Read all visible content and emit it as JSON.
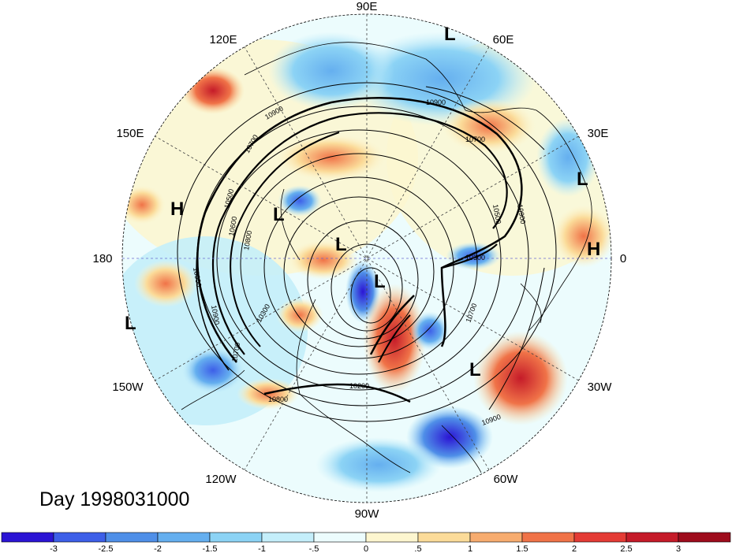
{
  "title": "Day 1998031000",
  "longitude_labels": [
    "90E",
    "60E",
    "30E",
    "0",
    "30W",
    "60W",
    "90W",
    "120W",
    "150W",
    "180",
    "150E",
    "120E"
  ],
  "pressure_centers": [
    {
      "id": "L1",
      "label": "L"
    },
    {
      "id": "L2",
      "label": "L"
    },
    {
      "id": "L3",
      "label": "L"
    },
    {
      "id": "L4",
      "label": "L"
    },
    {
      "id": "L5",
      "label": "L"
    },
    {
      "id": "L6",
      "label": "L"
    },
    {
      "id": "L7",
      "label": "L"
    },
    {
      "id": "H1",
      "label": "H"
    },
    {
      "id": "H2",
      "label": "H"
    }
  ],
  "contour_labels": [
    "10900",
    "10900",
    "10900",
    "10900",
    "10900",
    "10700",
    "10700",
    "10700",
    "10700",
    "10500",
    "10500",
    "10300",
    "10300",
    "10200",
    "10800",
    "10800",
    "10600",
    "10900"
  ],
  "colorbar": {
    "tick_labels": [
      "-3",
      "-2.5",
      "-2",
      "-1.5",
      "-1",
      "-.5",
      "0",
      ".5",
      "1",
      "1.5",
      "2",
      "2.5",
      "3"
    ],
    "colors": [
      "#2b14d4",
      "#3d5fe8",
      "#4f8fe8",
      "#65afef",
      "#8cd3f5",
      "#c4eefa",
      "#ecfcfd",
      "#fdf6cf",
      "#fbdb99",
      "#f7ac6f",
      "#f07348",
      "#e43b35",
      "#c51b29",
      "#9e0c1c"
    ]
  }
}
